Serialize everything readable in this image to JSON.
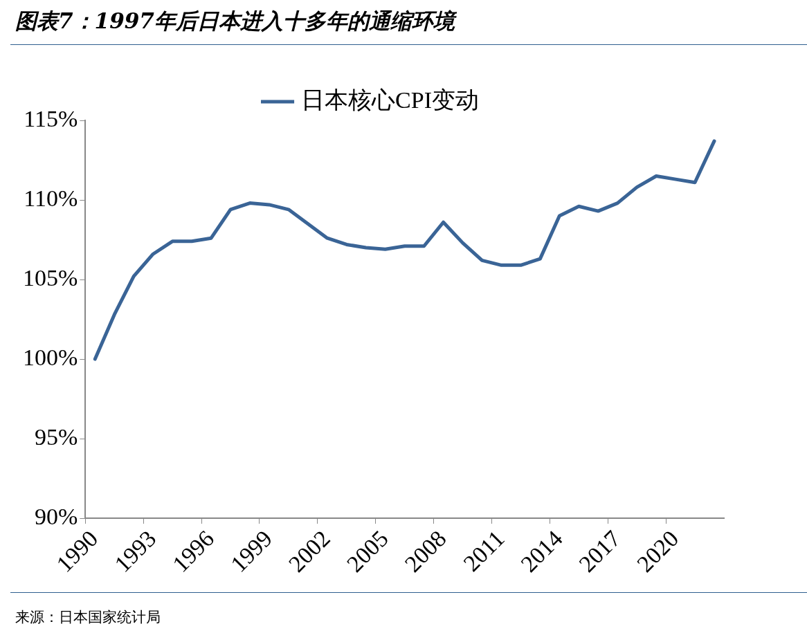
{
  "chart_data": {
    "type": "line",
    "title": "图表7：1997年后日本进入十多年的通缩环境",
    "categories": [
      "1990",
      null,
      null,
      "1993",
      null,
      null,
      "1996",
      null,
      null,
      "1999",
      null,
      null,
      "2002",
      null,
      null,
      "2005",
      null,
      null,
      "2008",
      null,
      null,
      "2011",
      null,
      null,
      "2014",
      null,
      null,
      "2017",
      null,
      null,
      "2020",
      null,
      null
    ],
    "series": [
      {
        "name": "日本核心CPI变动",
        "color": "#3a6496",
        "values": [
          100,
          102.8,
          105.2,
          106.6,
          107.4,
          107.4,
          107.6,
          109.4,
          109.8,
          109.7,
          109.4,
          108.5,
          107.6,
          107.2,
          107.0,
          106.9,
          107.1,
          107.1,
          108.6,
          107.3,
          106.2,
          105.9,
          105.9,
          106.3,
          109.0,
          109.6,
          109.3,
          109.8,
          110.8,
          111.5,
          111.3,
          111.1,
          113.7
        ]
      }
    ],
    "ylim": [
      90,
      115
    ],
    "yticks": [
      {
        "value": 90,
        "label": "90%"
      },
      {
        "value": 95,
        "label": "95%"
      },
      {
        "value": 100,
        "label": "100%"
      },
      {
        "value": 105,
        "label": "105%"
      },
      {
        "value": 110,
        "label": "110%"
      },
      {
        "value": 115,
        "label": "115%"
      }
    ],
    "legend": "top",
    "grid": false,
    "marker": "none",
    "line_style": "solid",
    "annotations": [
      "来源：日本国家统计局"
    ]
  }
}
